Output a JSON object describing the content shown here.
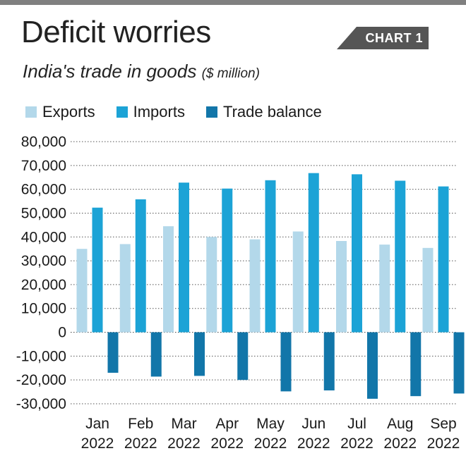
{
  "header": {
    "title": "Deficit worries",
    "tag": "CHART 1",
    "subtitle": "India's trade in goods",
    "subtitle_unit": "($ million)"
  },
  "colors": {
    "exports": "#b3d8ea",
    "imports": "#1ca3d6",
    "trade_balance": "#1276a9",
    "grid": "#555555"
  },
  "chart_data": {
    "type": "bar",
    "title": "Deficit worries",
    "subtitle": "India's trade in goods ($ million)",
    "categories": [
      [
        "Jan",
        "2022"
      ],
      [
        "Feb",
        "2022"
      ],
      [
        "Mar",
        "2022"
      ],
      [
        "Apr",
        "2022"
      ],
      [
        "May",
        "2022"
      ],
      [
        "Jun",
        "2022"
      ],
      [
        "Jul",
        "2022"
      ],
      [
        "Aug",
        "2022"
      ],
      [
        "Sep",
        "2022"
      ]
    ],
    "series": [
      {
        "name": "Exports",
        "values": [
          35000,
          37000,
          44500,
          40000,
          39000,
          42300,
          38300,
          36800,
          35400
        ]
      },
      {
        "name": "Imports",
        "values": [
          52300,
          55800,
          62800,
          60300,
          63800,
          66800,
          66300,
          63600,
          61200
        ]
      },
      {
        "name": "Trade balance",
        "values": [
          -17000,
          -18600,
          -18300,
          -20000,
          -24800,
          -24400,
          -27900,
          -26800,
          -25700
        ]
      }
    ],
    "ylim": [
      -30000,
      80000
    ],
    "yticks": [
      80000,
      70000,
      60000,
      50000,
      40000,
      30000,
      20000,
      10000,
      0,
      -10000,
      -20000,
      -30000
    ],
    "ytick_labels": [
      "80,000",
      "70,000",
      "60,000",
      "50,000",
      "40,000",
      "30,000",
      "20,000",
      "10,000",
      "0",
      "-10,000",
      "-20,000",
      "-30,000"
    ],
    "grid": true,
    "legend": "top-left"
  }
}
